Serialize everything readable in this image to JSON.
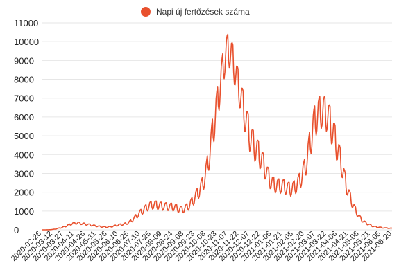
{
  "chart_data": {
    "type": "line",
    "legend": {
      "label": "Napi új fertőzések száma",
      "color": "#e8502d",
      "placement": "top-center"
    },
    "ylim": [
      0,
      11000
    ],
    "yticks": [
      0,
      1000,
      2000,
      3000,
      4000,
      5000,
      6000,
      7000,
      8000,
      9000,
      10000,
      11000
    ],
    "ytick_labels": [
      "0",
      "1000",
      "2000",
      "3000",
      "4000",
      "5000",
      "6000",
      "7000",
      "8000",
      "9000",
      "10000",
      "11000"
    ],
    "xtick_labels": [
      "2020-02-26",
      "2020-03-12",
      "2020-03-27",
      "2020-04-11",
      "2020-04-26",
      "2020-05-11",
      "2020-05-26",
      "2020-06-10",
      "2020-06-25",
      "2020-07-10",
      "2020-07-25",
      "2020-08-09",
      "2020-08-24",
      "2020-09-08",
      "2020-09-23",
      "2020-10-08",
      "2020-10-23",
      "2020-11-07",
      "2020-11-22",
      "2020-12-07",
      "2020-12-22",
      "2021-01-06",
      "2021-01-21",
      "2021-02-05",
      "2021-02-20",
      "2021-03-07",
      "2021-03-22",
      "2021-04-06",
      "2021-04-21",
      "2021-05-06",
      "2021-05-21",
      "2021-06-05",
      "2021-06-20"
    ],
    "grid": true,
    "series": [
      {
        "name": "Napi új fertőzések száma",
        "color": "#e8502d",
        "x": [
          "2020-02-26",
          "2020-03-12",
          "2020-03-27",
          "2020-04-11",
          "2020-04-26",
          "2020-05-11",
          "2020-05-26",
          "2020-06-10",
          "2020-06-25",
          "2020-07-10",
          "2020-07-25",
          "2020-08-09",
          "2020-08-24",
          "2020-09-08",
          "2020-09-23",
          "2020-10-08",
          "2020-10-23",
          "2020-11-07",
          "2020-11-22",
          "2020-12-07",
          "2020-12-22",
          "2021-01-06",
          "2021-01-21",
          "2021-02-05",
          "2021-02-20",
          "2021-03-07",
          "2021-03-22",
          "2021-04-06",
          "2021-04-21",
          "2021-05-06",
          "2021-05-21",
          "2021-06-05",
          "2021-06-20"
        ],
        "values": [
          0,
          20,
          150,
          350,
          300,
          200,
          150,
          250,
          400,
          900,
          1300,
          1250,
          1200,
          1100,
          1700,
          3000,
          6500,
          9500,
          7500,
          5000,
          3800,
          2500,
          2300,
          2200,
          3200,
          5800,
          6100,
          4300,
          2000,
          700,
          250,
          120,
          80
        ]
      }
    ]
  }
}
